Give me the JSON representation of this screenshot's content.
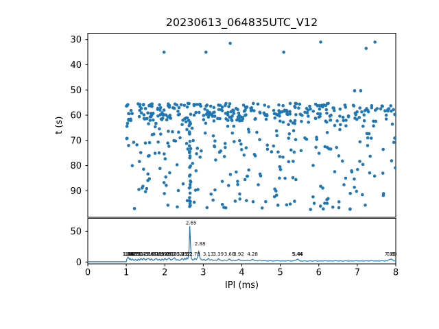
{
  "figure": {
    "title": "20230613_064835UTC_V12",
    "background": "#ffffff",
    "accent_color": "#1f77b4",
    "spine_color": "#000000"
  },
  "chart_data": [
    {
      "type": "scatter",
      "title": "20230613_064835UTC_V12",
      "xlabel": "",
      "ylabel": "t (s)",
      "xlim": [
        0,
        8
      ],
      "ylim": [
        27.5,
        100.5
      ],
      "y_inverted": true,
      "yticks": [
        30,
        40,
        50,
        60,
        70,
        80,
        90
      ],
      "grid": false,
      "marker_color": "#1f77b4",
      "marker_radius": 2.3,
      "outlier_points": [
        [
          1.98,
          35.0
        ],
        [
          3.07,
          35.0
        ],
        [
          3.7,
          31.5
        ],
        [
          5.09,
          35.0
        ],
        [
          6.05,
          31.0
        ],
        [
          7.23,
          33.5
        ],
        [
          7.46,
          31.0
        ],
        [
          6.93,
          50.3
        ],
        [
          7.09,
          50.3
        ]
      ],
      "streak": {
        "x_center": 2.655,
        "x_spread": 0.045,
        "t_min": 62,
        "t_max": 97,
        "count": 32,
        "seed": 7
      },
      "bands": [
        {
          "name": "dense-click-band",
          "x_min": 1.0,
          "x_max": 7.99,
          "t_min": 55.3,
          "t_max": 62.5,
          "count": 300,
          "seed": 11
        },
        {
          "name": "mid-scatter",
          "x_min": 1.0,
          "x_max": 7.99,
          "t_min": 62.5,
          "t_max": 78.0,
          "count": 122,
          "seed": 22
        },
        {
          "name": "low-scatter",
          "x_min": 1.0,
          "x_max": 7.99,
          "t_min": 78.0,
          "t_max": 97.4,
          "count": 112,
          "seed": 33
        }
      ]
    },
    {
      "type": "line",
      "xlabel": "IPI (ms)",
      "ylabel": "",
      "xlim": [
        0,
        8
      ],
      "ylim": [
        -3,
        71
      ],
      "y_inverted": false,
      "xticks": [
        0,
        1,
        2,
        3,
        4,
        5,
        6,
        7,
        8
      ],
      "yticks": [
        0,
        50
      ],
      "grid": false,
      "line_color": "#1f77b4",
      "points": [
        [
          0.0,
          0.4
        ],
        [
          0.3,
          0.4
        ],
        [
          0.6,
          0.4
        ],
        [
          0.9,
          0.4
        ],
        [
          1.0,
          0.6
        ],
        [
          1.02,
          5.5
        ],
        [
          1.04,
          8.0
        ],
        [
          1.06,
          7.0
        ],
        [
          1.08,
          4.0
        ],
        [
          1.1,
          6.0
        ],
        [
          1.13,
          3.0
        ],
        [
          1.16,
          5.0
        ],
        [
          1.2,
          2.5
        ],
        [
          1.24,
          4.5
        ],
        [
          1.28,
          2.0
        ],
        [
          1.31,
          5.0
        ],
        [
          1.35,
          3.0
        ],
        [
          1.38,
          6.0
        ],
        [
          1.42,
          3.5
        ],
        [
          1.45,
          6.5
        ],
        [
          1.5,
          3.0
        ],
        [
          1.54,
          5.0
        ],
        [
          1.58,
          6.0
        ],
        [
          1.62,
          3.0
        ],
        [
          1.65,
          5.5
        ],
        [
          1.7,
          2.5
        ],
        [
          1.74,
          4.0
        ],
        [
          1.78,
          6.0
        ],
        [
          1.82,
          3.0
        ],
        [
          1.86,
          4.5
        ],
        [
          1.9,
          2.5
        ],
        [
          1.93,
          5.0
        ],
        [
          1.97,
          3.0
        ],
        [
          2.0,
          6.0
        ],
        [
          2.04,
          3.5
        ],
        [
          2.08,
          5.0
        ],
        [
          2.12,
          6.5
        ],
        [
          2.16,
          3.0
        ],
        [
          2.2,
          4.5
        ],
        [
          2.25,
          7.0
        ],
        [
          2.3,
          3.0
        ],
        [
          2.34,
          4.0
        ],
        [
          2.38,
          2.5
        ],
        [
          2.42,
          4.0
        ],
        [
          2.45,
          6.0
        ],
        [
          2.49,
          3.5
        ],
        [
          2.52,
          6.5
        ],
        [
          2.55,
          4.0
        ],
        [
          2.57,
          7.0
        ],
        [
          2.6,
          5.0
        ],
        [
          2.63,
          20.0
        ],
        [
          2.65,
          58.0
        ],
        [
          2.67,
          25.0
        ],
        [
          2.69,
          6.0
        ],
        [
          2.72,
          3.0
        ],
        [
          2.76,
          4.0
        ],
        [
          2.78,
          6.0
        ],
        [
          2.82,
          4.0
        ],
        [
          2.85,
          8.0
        ],
        [
          2.88,
          18.0
        ],
        [
          2.91,
          8.0
        ],
        [
          2.94,
          4.0
        ],
        [
          2.98,
          3.0
        ],
        [
          3.02,
          4.5
        ],
        [
          3.06,
          2.5
        ],
        [
          3.1,
          4.0
        ],
        [
          3.13,
          6.0
        ],
        [
          3.17,
          3.0
        ],
        [
          3.22,
          4.0
        ],
        [
          3.27,
          2.5
        ],
        [
          3.31,
          3.5
        ],
        [
          3.35,
          2.5
        ],
        [
          3.39,
          5.5
        ],
        [
          3.44,
          3.0
        ],
        [
          3.5,
          2.0
        ],
        [
          3.55,
          3.5
        ],
        [
          3.6,
          2.5
        ],
        [
          3.64,
          3.0
        ],
        [
          3.68,
          5.0
        ],
        [
          3.73,
          2.5
        ],
        [
          3.78,
          3.0
        ],
        [
          3.83,
          2.0
        ],
        [
          3.88,
          3.0
        ],
        [
          3.92,
          4.5
        ],
        [
          3.97,
          2.5
        ],
        [
          4.02,
          3.0
        ],
        [
          4.08,
          2.0
        ],
        [
          4.14,
          3.0
        ],
        [
          4.2,
          2.0
        ],
        [
          4.24,
          3.0
        ],
        [
          4.28,
          4.5
        ],
        [
          4.33,
          2.5
        ],
        [
          4.4,
          2.0
        ],
        [
          4.47,
          3.0
        ],
        [
          4.54,
          2.0
        ],
        [
          4.6,
          2.5
        ],
        [
          4.67,
          1.5
        ],
        [
          4.74,
          2.5
        ],
        [
          4.8,
          1.5
        ],
        [
          4.87,
          2.0
        ],
        [
          4.94,
          2.5
        ],
        [
          5.0,
          1.5
        ],
        [
          5.07,
          2.0
        ],
        [
          5.14,
          1.5
        ],
        [
          5.2,
          2.5
        ],
        [
          5.27,
          1.5
        ],
        [
          5.34,
          2.0
        ],
        [
          5.4,
          3.0
        ],
        [
          5.44,
          4.5
        ],
        [
          5.46,
          4.8
        ],
        [
          5.5,
          2.0
        ],
        [
          5.57,
          1.5
        ],
        [
          5.64,
          2.0
        ],
        [
          5.7,
          1.2
        ],
        [
          5.77,
          2.0
        ],
        [
          5.84,
          1.5
        ],
        [
          5.9,
          2.2
        ],
        [
          5.97,
          1.3
        ],
        [
          6.04,
          2.0
        ],
        [
          6.1,
          1.5
        ],
        [
          6.17,
          2.3
        ],
        [
          6.24,
          1.4
        ],
        [
          6.3,
          2.0
        ],
        [
          6.37,
          1.5
        ],
        [
          6.44,
          2.5
        ],
        [
          6.5,
          1.5
        ],
        [
          6.57,
          2.0
        ],
        [
          6.64,
          1.3
        ],
        [
          6.7,
          2.2
        ],
        [
          6.77,
          1.5
        ],
        [
          6.84,
          2.0
        ],
        [
          6.9,
          1.4
        ],
        [
          6.97,
          2.3
        ],
        [
          7.04,
          1.5
        ],
        [
          7.1,
          2.0
        ],
        [
          7.17,
          1.4
        ],
        [
          7.24,
          2.2
        ],
        [
          7.3,
          1.5
        ],
        [
          7.37,
          2.5
        ],
        [
          7.44,
          1.5
        ],
        [
          7.5,
          2.0
        ],
        [
          7.57,
          1.5
        ],
        [
          7.64,
          2.3
        ],
        [
          7.7,
          1.6
        ],
        [
          7.77,
          2.0
        ],
        [
          7.85,
          4.5
        ],
        [
          7.89,
          4.8
        ],
        [
          7.95,
          2.0
        ],
        [
          8.0,
          1.5
        ]
      ],
      "major_peak_labels": [
        {
          "x": 2.65,
          "text": "2.65",
          "label_y_value": 61
        },
        {
          "x": 2.88,
          "text": "2.88",
          "label_y_value": 27
        }
      ],
      "minor_peak_labels": [
        {
          "x": 1.04,
          "text": "1.04"
        },
        {
          "x": 1.06,
          "text": "1.06"
        },
        {
          "x": 1.11,
          "text": "1.11"
        },
        {
          "x": 1.15,
          "text": "1.15"
        },
        {
          "x": 1.17,
          "text": "1.17"
        },
        {
          "x": 1.21,
          "text": "1.21"
        },
        {
          "x": 1.26,
          "text": "1.26"
        },
        {
          "x": 1.31,
          "text": "1.31"
        },
        {
          "x": 1.37,
          "text": "1.37"
        },
        {
          "x": 1.45,
          "text": "1.45"
        },
        {
          "x": 1.51,
          "text": "1.51"
        },
        {
          "x": 1.58,
          "text": "1.58"
        },
        {
          "x": 1.65,
          "text": "1.65"
        },
        {
          "x": 1.71,
          "text": "1.71"
        },
        {
          "x": 1.78,
          "text": "1.78"
        },
        {
          "x": 1.85,
          "text": "1.85"
        },
        {
          "x": 1.92,
          "text": "1.92"
        },
        {
          "x": 1.99,
          "text": "1.99"
        },
        {
          "x": 2.05,
          "text": "2.05"
        },
        {
          "x": 2.12,
          "text": "2.12"
        },
        {
          "x": 2.18,
          "text": "2.18"
        },
        {
          "x": 2.25,
          "text": "2.25"
        },
        {
          "x": 2.45,
          "text": "2.45"
        },
        {
          "x": 2.52,
          "text": "2.52"
        },
        {
          "x": 2.57,
          "text": "2.57"
        },
        {
          "x": 2.78,
          "text": "2.78"
        },
        {
          "x": 3.13,
          "text": "3.13"
        },
        {
          "x": 3.39,
          "text": "3.39"
        },
        {
          "x": 3.68,
          "text": "3.68"
        },
        {
          "x": 3.92,
          "text": "3.92"
        },
        {
          "x": 4.28,
          "text": "4.28"
        },
        {
          "x": 5.44,
          "text": "5.44"
        },
        {
          "x": 5.46,
          "text": "5.46"
        },
        {
          "x": 7.85,
          "text": "7.85"
        },
        {
          "x": 7.89,
          "text": "7.89"
        }
      ],
      "minor_label_y_value": 10.3
    }
  ]
}
